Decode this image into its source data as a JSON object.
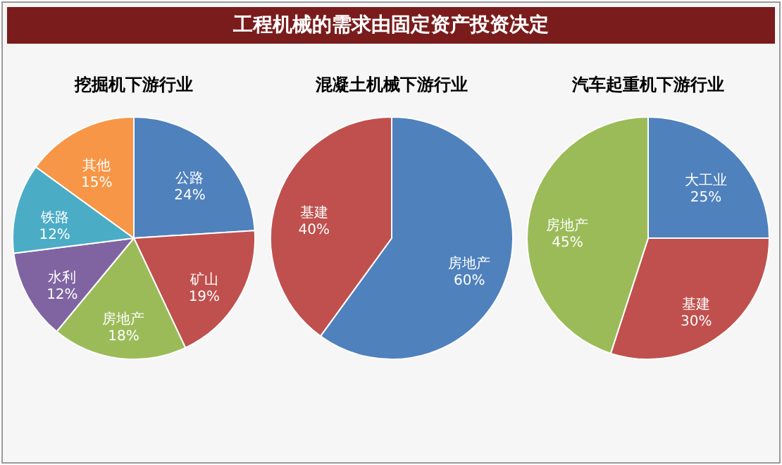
{
  "chart_data": [
    {
      "type": "other",
      "title": "工程机械的需求由固定资产投资决定"
    },
    {
      "type": "pie",
      "title": "挖掘机下游行业",
      "categories": [
        "公路",
        "矿山",
        "房地产",
        "水利",
        "铁路",
        "其他"
      ],
      "values": [
        24,
        19,
        18,
        12,
        12,
        15
      ],
      "value_labels": [
        "24%",
        "19%",
        "18%",
        "12%",
        "12%",
        "15%"
      ],
      "colors": [
        "#4f81bd",
        "#c0504d",
        "#9bbb59",
        "#8064a2",
        "#4bacc6",
        "#f79646"
      ]
    },
    {
      "type": "pie",
      "title": "混凝土机械下游行业",
      "categories": [
        "房地产",
        "基建"
      ],
      "values": [
        60,
        40
      ],
      "value_labels": [
        "60%",
        "40%"
      ],
      "colors": [
        "#4f81bd",
        "#c0504d"
      ]
    },
    {
      "type": "pie",
      "title": "汽车起重机下游行业",
      "categories": [
        "大工业",
        "基建",
        "房地产"
      ],
      "values": [
        25,
        30,
        45
      ],
      "value_labels": [
        "25%",
        "30%",
        "45%"
      ],
      "colors": [
        "#4f81bd",
        "#c0504d",
        "#9bbb59"
      ]
    }
  ]
}
